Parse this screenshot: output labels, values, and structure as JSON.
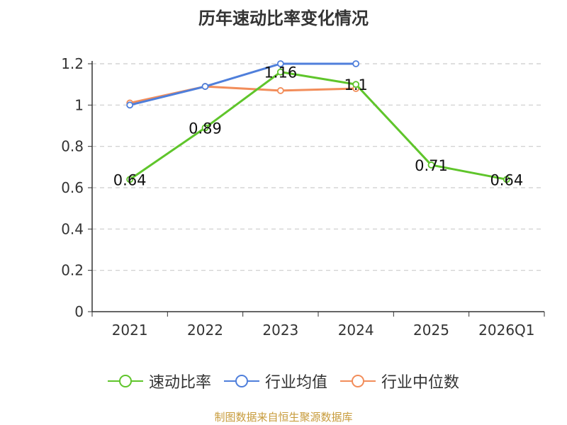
{
  "chart_data": {
    "type": "line",
    "title": "历年速动比率变化情况",
    "categories": [
      "2021",
      "2022",
      "2023",
      "2024",
      "2025",
      "2026Q1"
    ],
    "ylim": [
      0,
      1.2
    ],
    "yticks": [
      "0",
      "0.2",
      "0.4",
      "0.6",
      "0.8",
      "1",
      "1.2"
    ],
    "series": [
      {
        "name": "速动比率",
        "color": "#5fc52b",
        "values": [
          0.64,
          0.89,
          1.16,
          1.1,
          0.71,
          0.64
        ],
        "labels": [
          "0.64",
          "0.89",
          "1.16",
          "1.1",
          "0.71",
          "0.64"
        ]
      },
      {
        "name": "行业均值",
        "color": "#4f7fdb",
        "values": [
          1.0,
          1.09,
          1.2,
          1.2,
          null,
          null
        ]
      },
      {
        "name": "行业中位数",
        "color": "#f28d5a",
        "values": [
          1.01,
          1.09,
          1.07,
          1.08,
          null,
          null
        ]
      }
    ],
    "grid": "horizontal-dashed",
    "legend_position": "bottom"
  },
  "source": "制图数据来自恒生聚源数据库"
}
